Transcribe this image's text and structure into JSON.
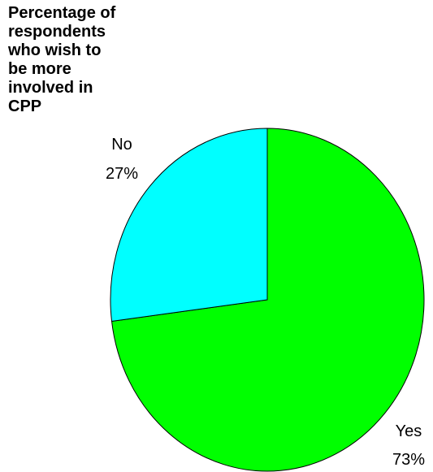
{
  "chart_data": {
    "type": "pie",
    "title_lines": [
      "Percentage of",
      "respondents",
      "who wish to",
      "be more",
      "involved in",
      "CPP"
    ],
    "slices": [
      {
        "label": "Yes",
        "value": 73,
        "value_label": "73%",
        "color": "#00ff00"
      },
      {
        "label": "No",
        "value": 27,
        "value_label": "27%",
        "color": "#00ffff"
      }
    ],
    "start": "top",
    "direction": "clockwise",
    "legend": "none"
  }
}
